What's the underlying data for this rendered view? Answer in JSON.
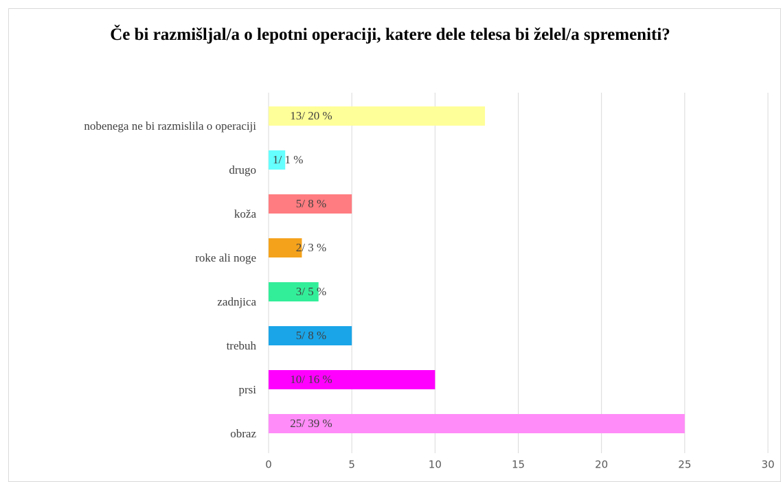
{
  "chart_data": {
    "type": "barh",
    "title": "Če bi razmišljal/a o lepotni operaciji, katere dele telesa bi želel/a spremeniti?",
    "categories": [
      "nobenega ne bi razmislila o operaciji",
      "drugo",
      "koža",
      "roke ali noge",
      "zadnjica",
      "trebuh",
      "prsi",
      "obraz"
    ],
    "values": [
      13,
      1,
      5,
      2,
      3,
      5,
      10,
      25
    ],
    "value_labels": [
      "13/ 20 %",
      "1/ 1 %",
      "5/ 8 %",
      "2/ 3 %",
      "3/ 5 %",
      "5/ 8 %",
      "10/ 16 %",
      "25/ 39 %"
    ],
    "colors": [
      "#ffff99",
      "#66ffff",
      "#ff7c80",
      "#f4a21c",
      "#33ee99",
      "#1aa5e8",
      "#ff00ff",
      "#ff8cf8"
    ],
    "xlim": [
      0,
      30
    ],
    "xticks": [
      0,
      5,
      10,
      15,
      20,
      25,
      30
    ],
    "grid": true
  }
}
